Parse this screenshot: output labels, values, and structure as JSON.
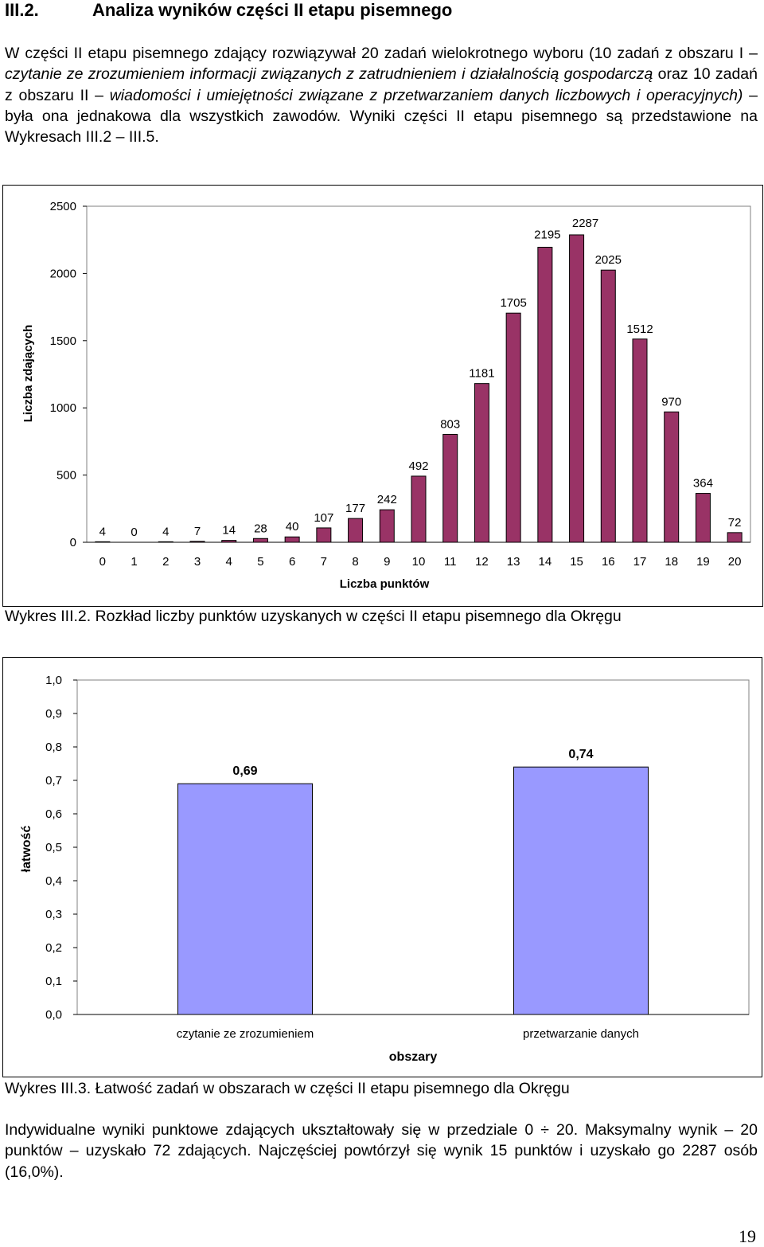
{
  "section": {
    "number": "III.2.",
    "title": "Analiza wyników części II etapu pisemnego"
  },
  "intro": {
    "p1": "W części II etapu pisemnego zdający rozwiązywał 20 zadań wielokrotnego wyboru (10 zadań z obszaru I – ",
    "p2": "czytanie ze zrozumieniem informacji związanych z zatrudnieniem i działalnością gospodarczą",
    "p3": " oraz 10 zadań z obszaru II – ",
    "p4": "wiadomości i umiejętności związane z przetwarzaniem danych liczbowych i operacyjnych)",
    "p5": " – była ona jednakowa dla wszystkich zawodów. Wyniki części II etapu pisemnego są przedstawione na Wykresach III.2 – III.5."
  },
  "captions": {
    "chart1": "Wykres III.2. Rozkład liczby punktów uzyskanych w części II etapu pisemnego dla Okręgu",
    "chart2": "Wykres III.3. Łatwość zadań w obszarach w części II etapu pisemnego dla Okręgu"
  },
  "summary": "Indywidualne wyniki punktowe zdających ukształtowały się w przedziale 0 ÷ 20. Maksymalny wynik – 20 punktów – uzyskało 72 zdających. Najczęściej powtórzył się wynik 15 punktów i uzyskało go 2287 osób (16,0%).",
  "page_number": "19",
  "colors": {
    "bar1": "#993366",
    "bar2": "#9999ff"
  },
  "chart_data": [
    {
      "type": "bar",
      "title": "",
      "xlabel": "Liczba punktów",
      "ylabel": "Liczba zdających",
      "categories": [
        "0",
        "1",
        "2",
        "3",
        "4",
        "5",
        "6",
        "7",
        "8",
        "9",
        "10",
        "11",
        "12",
        "13",
        "14",
        "15",
        "16",
        "17",
        "18",
        "19",
        "20"
      ],
      "values": [
        4,
        0,
        4,
        7,
        14,
        28,
        40,
        107,
        177,
        242,
        492,
        803,
        1181,
        1705,
        2195,
        2287,
        2025,
        1512,
        970,
        364,
        72
      ],
      "yticks": [
        "0",
        "500",
        "1000",
        "1500",
        "2000",
        "2500"
      ],
      "ylim": [
        0,
        2500
      ],
      "grid": false
    },
    {
      "type": "bar",
      "title": "",
      "xlabel": "obszary",
      "ylabel": "łatwość",
      "categories": [
        "czytanie ze zrozumieniem",
        "przetwarzanie danych"
      ],
      "values": [
        0.69,
        0.74
      ],
      "value_labels": [
        "0,69",
        "0,74"
      ],
      "yticks": [
        "0,0",
        "0,1",
        "0,2",
        "0,3",
        "0,4",
        "0,5",
        "0,6",
        "0,7",
        "0,8",
        "0,9",
        "1,0"
      ],
      "ylim": [
        0,
        1
      ],
      "grid": false
    }
  ]
}
